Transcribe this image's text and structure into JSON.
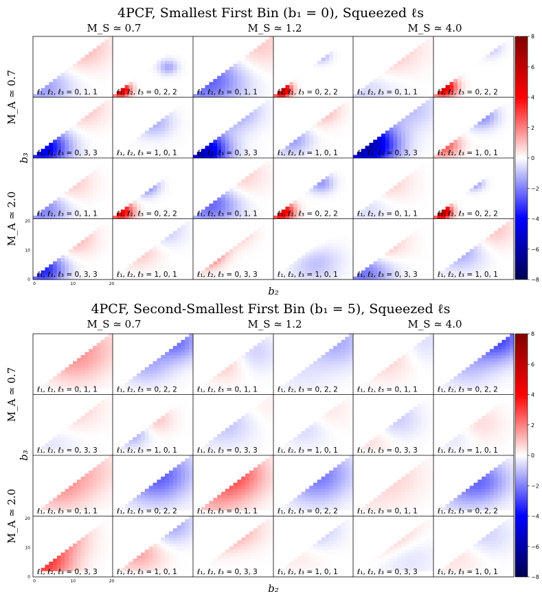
{
  "chart_data": [
    {
      "type": "heatmap",
      "title": "4PCF, Smallest First Bin (b₁ = 0), Squeezed ℓs",
      "column_labels": [
        "M_S ≃ 0.7",
        "M_S ≃ 1.2",
        "M_S ≃ 4.0"
      ],
      "row_labels": [
        "M_A ≃ 0.7",
        "M_A ≃ 2.0"
      ],
      "xlabel": "b₂",
      "ylabel": "b₃",
      "x_ticks": [
        "0",
        "10",
        "20"
      ],
      "y_ticks": [
        "0",
        "10",
        "20"
      ],
      "panel_labels": [
        [
          "ℓ₁, ℓ₂, ℓ₃ = 0, 1, 1",
          "ℓ₁, ℓ₂, ℓ₃ = 0, 2, 2",
          "ℓ₁, ℓ₂, ℓ₃ = 0, 1, 1",
          "ℓ₁, ℓ₂, ℓ₃ = 0, 2, 2",
          "ℓ₁, ℓ₂, ℓ₃ = 0, 1, 1",
          "ℓ₁, ℓ₂, ℓ₃ = 0, 2, 2"
        ],
        [
          "ℓ₁, ℓ₂, ℓ₃ = 0, 3, 3",
          "ℓ₁, ℓ₂, ℓ₃ = 1, 0, 1",
          "ℓ₁, ℓ₂, ℓ₃ = 0, 3, 3",
          "ℓ₁, ℓ₂, ℓ₃ = 1, 0, 1",
          "ℓ₁, ℓ₂, ℓ₃ = 0, 3, 3",
          "ℓ₁, ℓ₂, ℓ₃ = 1, 0, 1"
        ],
        [
          "ℓ₁, ℓ₂, ℓ₃ = 0, 1, 1",
          "ℓ₁, ℓ₂, ℓ₃ = 0, 2, 2",
          "ℓ₁, ℓ₂, ℓ₃ = 0, 1, 1",
          "ℓ₁, ℓ₂, ℓ₃ = 0, 2, 2",
          "ℓ₁, ℓ₂, ℓ₃ = 0, 1, 1",
          "ℓ₁, ℓ₂, ℓ₃ = 0, 2, 2"
        ],
        [
          "ℓ₁, ℓ₂, ℓ₃ = 0, 3, 3",
          "ℓ₁, ℓ₂, ℓ₃ = 1, 0, 1",
          "ℓ₁, ℓ₂, ℓ₃ = 0, 3, 3",
          "ℓ₁, ℓ₂, ℓ₃ = 1, 0, 1",
          "ℓ₁, ℓ₂, ℓ₃ = 0, 3, 3",
          "ℓ₁, ℓ₂, ℓ₃ = 1, 0, 1"
        ]
      ],
      "colorbar": {
        "min": -8,
        "max": 8,
        "ticks": [
          8,
          6,
          4,
          2,
          0,
          -2,
          -4,
          -6,
          -8
        ],
        "colormap": "seismic"
      },
      "panel_pattern": [
        [
          {
            "c": 0.45,
            "v": [
              {
                "x": 0.6,
                "y": 0.85,
                "a": 1.2
              },
              {
                "x": 0.1,
                "y": 0.15,
                "a": -1.5
              }
            ]
          },
          {
            "c": 0.15,
            "v": [
              {
                "x": 0.08,
                "y": 0.1,
                "a": 5.5
              },
              {
                "x": 0.7,
                "y": 0.5,
                "a": -1.4
              }
            ]
          },
          {
            "c": 0.6,
            "v": [
              {
                "x": 0.15,
                "y": 0.3,
                "a": -2.6
              },
              {
                "x": 0.7,
                "y": 0.9,
                "a": 1.0
              }
            ]
          },
          {
            "c": 0.15,
            "v": [
              {
                "x": 0.08,
                "y": 0.1,
                "a": 6.8
              },
              {
                "x": 0.6,
                "y": 0.7,
                "a": -1.3
              }
            ]
          },
          {
            "c": 0.6,
            "v": [
              {
                "x": 0.3,
                "y": 0.8,
                "a": 1.3
              },
              {
                "x": 0.1,
                "y": 0.2,
                "a": -0.8
              }
            ]
          },
          {
            "c": 0.2,
            "v": [
              {
                "x": 0.1,
                "y": 0.15,
                "a": 5.5
              },
              {
                "x": 0.7,
                "y": 0.85,
                "a": -1.0
              }
            ]
          }
        ],
        [
          {
            "c": 0.4,
            "v": [
              {
                "x": 0.1,
                "y": 0.15,
                "a": -4.5
              },
              {
                "x": 0.6,
                "y": 0.85,
                "a": 1.0
              }
            ]
          },
          {
            "c": 0.3,
            "v": [
              {
                "x": 0.5,
                "y": 0.6,
                "a": -1.3
              },
              {
                "x": 0.2,
                "y": 0.85,
                "a": 1.0
              }
            ]
          },
          {
            "c": 0.4,
            "v": [
              {
                "x": 0.08,
                "y": 0.1,
                "a": -5.5
              },
              {
                "x": 0.5,
                "y": 0.8,
                "a": -1.6
              }
            ]
          },
          {
            "c": 0.3,
            "v": [
              {
                "x": 0.2,
                "y": 0.3,
                "a": -1.6
              },
              {
                "x": 0.6,
                "y": 0.8,
                "a": 1.2
              }
            ]
          },
          {
            "c": 0.45,
            "v": [
              {
                "x": 0.15,
                "y": 0.2,
                "a": -6.0
              },
              {
                "x": 0.7,
                "y": 0.85,
                "a": -1.0
              }
            ]
          },
          {
            "c": 0.25,
            "v": [
              {
                "x": 0.1,
                "y": 0.2,
                "a": 2.8
              },
              {
                "x": 0.6,
                "y": 0.7,
                "a": -1.8
              }
            ]
          }
        ],
        [
          {
            "c": 0.4,
            "v": [
              {
                "x": 0.4,
                "y": 0.6,
                "a": 1.0
              },
              {
                "x": 0.1,
                "y": 0.15,
                "a": -2.0
              }
            ]
          },
          {
            "c": 0.2,
            "v": [
              {
                "x": 0.08,
                "y": 0.1,
                "a": 4.5
              },
              {
                "x": 0.4,
                "y": 0.55,
                "a": -2.2
              }
            ]
          },
          {
            "c": 0.45,
            "v": [
              {
                "x": 0.2,
                "y": 0.25,
                "a": -2.5
              },
              {
                "x": 0.5,
                "y": 0.7,
                "a": 1.0
              }
            ]
          },
          {
            "c": 0.2,
            "v": [
              {
                "x": 0.08,
                "y": 0.1,
                "a": 5.0
              },
              {
                "x": 0.6,
                "y": 0.6,
                "a": -1.6
              }
            ]
          },
          {
            "c": 0.4,
            "v": [
              {
                "x": 0.4,
                "y": 0.6,
                "a": 0.8
              },
              {
                "x": 0.15,
                "y": 0.2,
                "a": -0.6
              }
            ]
          },
          {
            "c": 0.15,
            "v": [
              {
                "x": 0.08,
                "y": 0.1,
                "a": 7.2
              },
              {
                "x": 0.5,
                "y": 0.6,
                "a": -1.8
              }
            ]
          }
        ],
        [
          {
            "c": 0.35,
            "v": [
              {
                "x": 0.1,
                "y": 0.15,
                "a": -3.5
              },
              {
                "x": 0.5,
                "y": 0.7,
                "a": 1.2
              }
            ]
          },
          {
            "c": 0.35,
            "v": [
              {
                "x": 0.3,
                "y": 0.5,
                "a": 1.0
              },
              {
                "x": 0.6,
                "y": 0.85,
                "a": -1.0
              }
            ]
          },
          {
            "c": 0.3,
            "v": [
              {
                "x": 0.06,
                "y": 0.5,
                "a": 6.5
              },
              {
                "x": 0.5,
                "y": 0.8,
                "a": 1.0
              }
            ]
          },
          {
            "c": 0.4,
            "v": [
              {
                "x": 0.3,
                "y": 0.6,
                "a": 1.0
              },
              {
                "x": 0.5,
                "y": 0.3,
                "a": -1.2
              }
            ]
          },
          {
            "c": 0.45,
            "v": [
              {
                "x": 0.2,
                "y": 0.6,
                "a": 2.0
              },
              {
                "x": 0.1,
                "y": 0.15,
                "a": -2.5
              }
            ]
          },
          {
            "c": 0.4,
            "v": [
              {
                "x": 0.3,
                "y": 0.5,
                "a": -1.5
              },
              {
                "x": 0.7,
                "y": 0.85,
                "a": 1.0
              }
            ]
          }
        ]
      ]
    },
    {
      "type": "heatmap",
      "title": "4PCF, Second-Smallest First Bin (b₁ = 5), Squeezed ℓs",
      "column_labels": [
        "M_S ≃ 0.7",
        "M_S ≃ 1.2",
        "M_S ≃ 4.0"
      ],
      "row_labels": [
        "M_A ≃ 0.7",
        "M_A ≃ 2.0"
      ],
      "xlabel": "b₂",
      "ylabel": "b₃",
      "x_ticks": [
        "0",
        "10",
        "20"
      ],
      "y_ticks": [
        "0",
        "10",
        "20"
      ],
      "panel_labels": [
        [
          "ℓ₁, ℓ₂, ℓ₃ = 0, 1, 1",
          "ℓ₁, ℓ₂, ℓ₃ = 0, 2, 2",
          "ℓ₁, ℓ₂, ℓ₃ = 0, 1, 1",
          "ℓ₁, ℓ₂, ℓ₃ = 0, 2, 2",
          "ℓ₁, ℓ₂, ℓ₃ = 0, 1, 1",
          "ℓ₁, ℓ₂, ℓ₃ = 0, 2, 2"
        ],
        [
          "ℓ₁, ℓ₂, ℓ₃ = 0, 3, 3",
          "ℓ₁, ℓ₂, ℓ₃ = 1, 0, 1",
          "ℓ₁, ℓ₂, ℓ₃ = 0, 3, 3",
          "ℓ₁, ℓ₂, ℓ₃ = 1, 0, 1",
          "ℓ₁, ℓ₂, ℓ₃ = 0, 3, 3",
          "ℓ₁, ℓ₂, ℓ₃ = 1, 0, 1"
        ],
        [
          "ℓ₁, ℓ₂, ℓ₃ = 0, 1, 1",
          "ℓ₁, ℓ₂, ℓ₃ = 0, 2, 2",
          "ℓ₁, ℓ₂, ℓ₃ = 0, 1, 1",
          "ℓ₁, ℓ₂, ℓ₃ = 0, 2, 2",
          "ℓ₁, ℓ₂, ℓ₃ = 0, 1, 1",
          "ℓ₁, ℓ₂, ℓ₃ = 0, 2, 2"
        ],
        [
          "ℓ₁, ℓ₂, ℓ₃ = 0, 3, 3",
          "ℓ₁, ℓ₂, ℓ₃ = 1, 0, 1",
          "ℓ₁, ℓ₂, ℓ₃ = 0, 3, 3",
          "ℓ₁, ℓ₂, ℓ₃ = 1, 0, 1",
          "ℓ₁, ℓ₂, ℓ₃ = 0, 3, 3",
          "ℓ₁, ℓ₂, ℓ₃ = 1, 0, 1"
        ]
      ],
      "colorbar": {
        "min": -8,
        "max": 8,
        "ticks": [
          8,
          6,
          4,
          2,
          0,
          -2,
          -4,
          -6,
          -8
        ],
        "colormap": "seismic"
      },
      "panel_pattern": [
        [
          {
            "c": 0.5,
            "v": [
              {
                "x": 0.5,
                "y": 0.6,
                "a": 1.4
              },
              {
                "x": 0.8,
                "y": 0.9,
                "a": 0.6
              }
            ]
          },
          {
            "c": 0.4,
            "v": [
              {
                "x": 0.8,
                "y": 0.9,
                "a": -2.2
              },
              {
                "x": 0.4,
                "y": 0.5,
                "a": -1.2
              }
            ]
          },
          {
            "c": 0.4,
            "v": [
              {
                "x": 0.4,
                "y": 0.6,
                "a": 1.2
              },
              {
                "x": 0.7,
                "y": 0.7,
                "a": -1.0
              }
            ]
          },
          {
            "c": 0.5,
            "v": [
              {
                "x": 0.8,
                "y": 0.9,
                "a": -1.3
              },
              {
                "x": 0.3,
                "y": 0.4,
                "a": -0.4
              }
            ]
          },
          {
            "c": 0.5,
            "v": [
              {
                "x": 0.4,
                "y": 0.7,
                "a": 1.0
              },
              {
                "x": 0.8,
                "y": 0.9,
                "a": -0.7
              }
            ]
          },
          {
            "c": 0.45,
            "v": [
              {
                "x": 0.8,
                "y": 0.95,
                "a": -3.0
              },
              {
                "x": 0.4,
                "y": 0.5,
                "a": -1.0
              }
            ]
          }
        ],
        [
          {
            "c": 0.5,
            "v": [
              {
                "x": 0.4,
                "y": 0.8,
                "a": 1.0
              },
              {
                "x": 0.2,
                "y": 0.3,
                "a": -0.5
              }
            ]
          },
          {
            "c": 0.3,
            "v": [
              {
                "x": 0.2,
                "y": 0.4,
                "a": -1.6
              },
              {
                "x": 0.5,
                "y": 0.6,
                "a": 1.0
              }
            ]
          },
          {
            "c": 0.5,
            "v": [
              {
                "x": 0.4,
                "y": 0.6,
                "a": -1.2
              },
              {
                "x": 0.7,
                "y": 0.8,
                "a": 0.5
              }
            ]
          },
          {
            "c": 0.4,
            "v": [
              {
                "x": 0.4,
                "y": 0.5,
                "a": -0.8
              },
              {
                "x": 0.6,
                "y": 0.7,
                "a": 0.6
              }
            ]
          },
          {
            "c": 0.4,
            "v": [
              {
                "x": 0.5,
                "y": 0.6,
                "a": -0.9
              },
              {
                "x": 0.2,
                "y": 0.3,
                "a": 0.6
              }
            ]
          },
          {
            "c": 0.4,
            "v": [
              {
                "x": 0.5,
                "y": 0.5,
                "a": 0.9
              },
              {
                "x": 0.3,
                "y": 0.4,
                "a": -0.8
              }
            ]
          }
        ],
        [
          {
            "c": 0.5,
            "v": [
              {
                "x": 0.3,
                "y": 0.5,
                "a": 1.5
              },
              {
                "x": 0.7,
                "y": 0.8,
                "a": 0.8
              }
            ]
          },
          {
            "c": 0.5,
            "v": [
              {
                "x": 0.5,
                "y": 0.6,
                "a": -1.8
              },
              {
                "x": 0.7,
                "y": 0.8,
                "a": -1.0
              }
            ]
          },
          {
            "c": 0.5,
            "v": [
              {
                "x": 0.5,
                "y": 0.7,
                "a": 2.6
              },
              {
                "x": 0.2,
                "y": 0.3,
                "a": 1.0
              }
            ]
          },
          {
            "c": 0.5,
            "v": [
              {
                "x": 0.5,
                "y": 0.6,
                "a": -1.5
              },
              {
                "x": 0.7,
                "y": 0.8,
                "a": -0.8
              }
            ]
          },
          {
            "c": 0.5,
            "v": [
              {
                "x": 0.5,
                "y": 0.7,
                "a": 0.6
              },
              {
                "x": 0.2,
                "y": 0.3,
                "a": 0.3
              }
            ]
          },
          {
            "c": 0.45,
            "v": [
              {
                "x": 0.6,
                "y": 0.6,
                "a": -2.0
              },
              {
                "x": 0.3,
                "y": 0.4,
                "a": -0.8
              }
            ]
          }
        ],
        [
          {
            "c": 0.45,
            "v": [
              {
                "x": 0.3,
                "y": 0.7,
                "a": 1.8
              },
              {
                "x": 0.1,
                "y": 0.2,
                "a": 3.0
              }
            ]
          },
          {
            "c": 0.4,
            "v": [
              {
                "x": 0.3,
                "y": 0.4,
                "a": 1.4
              },
              {
                "x": 0.7,
                "y": 0.9,
                "a": -1.5
              }
            ]
          },
          {
            "c": 0.4,
            "v": [
              {
                "x": 0.2,
                "y": 0.85,
                "a": 3.0
              },
              {
                "x": 0.6,
                "y": 0.8,
                "a": 0.8
              }
            ]
          },
          {
            "c": 0.4,
            "v": [
              {
                "x": 0.5,
                "y": 0.8,
                "a": -1.0
              },
              {
                "x": 0.3,
                "y": 0.4,
                "a": 0.4
              }
            ]
          },
          {
            "c": 0.5,
            "v": [
              {
                "x": 0.4,
                "y": 0.7,
                "a": 1.5
              },
              {
                "x": 0.6,
                "y": 0.4,
                "a": -0.8
              }
            ]
          },
          {
            "c": 0.45,
            "v": [
              {
                "x": 0.6,
                "y": 0.7,
                "a": -0.8
              },
              {
                "x": 0.3,
                "y": 0.4,
                "a": 0.6
              }
            ]
          }
        ]
      ]
    }
  ]
}
